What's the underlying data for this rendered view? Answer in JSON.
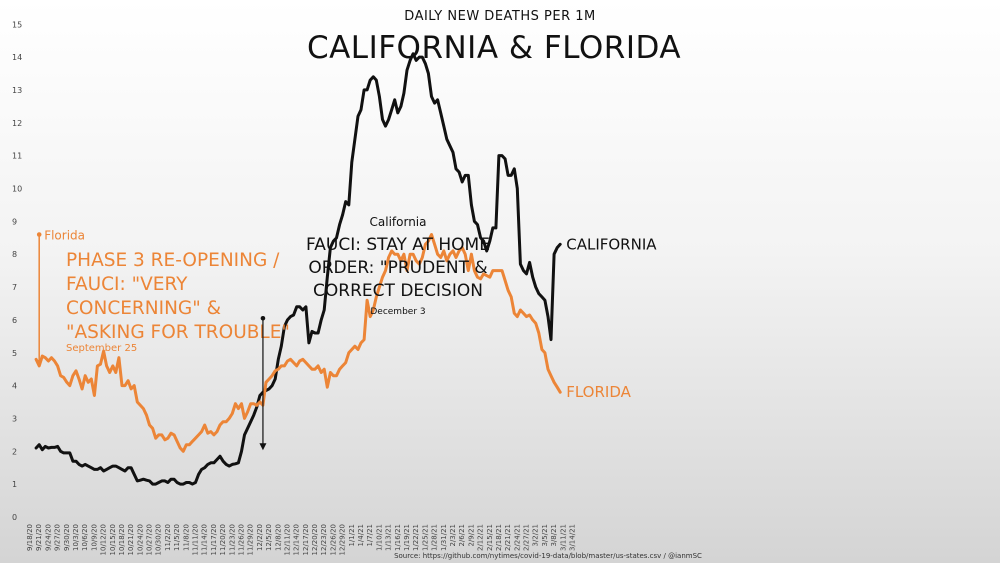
{
  "chart_data": {
    "type": "line",
    "subtitle": "DAILY NEW DEATHS PER 1M",
    "title": "CALIFORNIA & FLORIDA",
    "source": "Source: https://github.com/nytimes/covid-19-data/blob/master/us-states.csv / @ianmSC",
    "ylim": [
      0,
      15
    ],
    "yticks": [
      0,
      1,
      2,
      3,
      4,
      5,
      6,
      7,
      8,
      9,
      10,
      11,
      12,
      13,
      14,
      15
    ],
    "xlabels": [
      "9/18/20",
      "9/21/20",
      "9/24/20",
      "9/27/20",
      "9/30/20",
      "10/3/20",
      "10/6/20",
      "10/9/20",
      "10/12/20",
      "10/15/20",
      "10/18/20",
      "10/21/20",
      "10/24/20",
      "10/27/20",
      "10/30/20",
      "11/2/20",
      "11/5/20",
      "11/8/20",
      "11/11/20",
      "11/14/20",
      "11/17/20",
      "11/20/20",
      "11/23/20",
      "11/26/20",
      "11/29/20",
      "12/2/20",
      "12/5/20",
      "12/8/20",
      "12/11/20",
      "12/14/20",
      "12/17/20",
      "12/20/20",
      "12/23/20",
      "12/26/20",
      "12/29/20",
      "1/1/21",
      "1/4/21",
      "1/7/21",
      "1/10/21",
      "1/13/21",
      "1/16/21",
      "1/19/21",
      "1/22/21",
      "1/25/21",
      "1/28/21",
      "1/31/21",
      "2/3/21",
      "2/6/21",
      "2/9/21",
      "2/12/21",
      "2/15/21",
      "2/18/21",
      "2/21/21",
      "2/24/21",
      "2/27/21",
      "3/2/21",
      "3/5/21",
      "3/8/21",
      "3/11/21",
      "3/14/21"
    ],
    "series": [
      {
        "name": "CALIFORNIA",
        "color": "#111111",
        "start_index": 2,
        "values": [
          2.1,
          2.2,
          2.05,
          2.15,
          2.1,
          2.12,
          2.12,
          2.15,
          2.0,
          1.95,
          1.95,
          1.95,
          1.7,
          1.7,
          1.6,
          1.55,
          1.6,
          1.55,
          1.5,
          1.45,
          1.45,
          1.5,
          1.4,
          1.45,
          1.5,
          1.55,
          1.55,
          1.5,
          1.45,
          1.4,
          1.5,
          1.5,
          1.3,
          1.1,
          1.12,
          1.15,
          1.12,
          1.1,
          1.0,
          1.0,
          1.05,
          1.1,
          1.1,
          1.05,
          1.15,
          1.15,
          1.05,
          1.0,
          1.0,
          1.05,
          1.05,
          1.0,
          1.05,
          1.3,
          1.45,
          1.5,
          1.6,
          1.65,
          1.65,
          1.75,
          1.85,
          1.7,
          1.6,
          1.55,
          1.6,
          1.62,
          1.65,
          2.0,
          2.5,
          2.7,
          2.9,
          3.1,
          3.35,
          3.7,
          3.8,
          3.85,
          3.9,
          4.0,
          4.2,
          4.8,
          5.2,
          5.8,
          6.0,
          6.1,
          6.15,
          6.4,
          6.4,
          6.3,
          6.4,
          5.3,
          5.65,
          5.6,
          5.6,
          6.0,
          6.3,
          7.3,
          8.2,
          8.4,
          8.5,
          8.9,
          9.2,
          9.6,
          9.5,
          10.8,
          11.5,
          12.2,
          12.4,
          13.0,
          13.0,
          13.3,
          13.4,
          13.3,
          12.8,
          12.1,
          11.9,
          12.1,
          12.4,
          12.7,
          12.3,
          12.5,
          12.9,
          13.6,
          13.9,
          14.1,
          13.9,
          14.0,
          14.0,
          13.8,
          13.5,
          12.8,
          12.6,
          12.7,
          12.3,
          11.9,
          11.5,
          11.3,
          11.1,
          10.6,
          10.5,
          10.2,
          10.4,
          10.4,
          9.5,
          9.0,
          8.9,
          8.5,
          8.4,
          8.1,
          8.4,
          8.8,
          8.8,
          11.0,
          11.0,
          10.9,
          10.4,
          10.4,
          10.6,
          10.0,
          7.7,
          7.5,
          7.4,
          7.75,
          7.3,
          7.0,
          6.8,
          6.7,
          6.6,
          6.1,
          5.4,
          8.0,
          8.2,
          8.3
        ]
      },
      {
        "name": "FLORIDA",
        "color": "#ec8537",
        "start_index": 2,
        "values": [
          4.8,
          4.6,
          4.9,
          4.85,
          4.75,
          4.85,
          4.75,
          4.6,
          4.3,
          4.25,
          4.1,
          4.0,
          4.3,
          4.45,
          4.2,
          3.9,
          4.3,
          4.1,
          4.2,
          3.7,
          4.6,
          4.65,
          5.05,
          4.6,
          4.4,
          4.6,
          4.4,
          4.85,
          4.0,
          4.0,
          4.15,
          3.9,
          4.0,
          3.5,
          3.4,
          3.3,
          3.1,
          2.8,
          2.7,
          2.4,
          2.5,
          2.5,
          2.35,
          2.4,
          2.55,
          2.5,
          2.3,
          2.1,
          2.0,
          2.2,
          2.2,
          2.3,
          2.4,
          2.5,
          2.6,
          2.8,
          2.55,
          2.6,
          2.5,
          2.6,
          2.8,
          2.9,
          2.9,
          3.0,
          3.15,
          3.45,
          3.3,
          3.45,
          3.0,
          3.2,
          3.45,
          3.45,
          3.4,
          3.5,
          3.4,
          4.1,
          4.2,
          4.3,
          4.45,
          4.5,
          4.6,
          4.6,
          4.75,
          4.8,
          4.7,
          4.6,
          4.75,
          4.8,
          4.7,
          4.6,
          4.5,
          4.5,
          4.6,
          4.4,
          4.5,
          3.95,
          4.4,
          4.3,
          4.3,
          4.5,
          4.6,
          4.7,
          5.0,
          5.1,
          5.2,
          5.1,
          5.3,
          5.4,
          6.6,
          6.1,
          6.3,
          6.7,
          7.0,
          7.3,
          7.5,
          7.9,
          8.1,
          8.0,
          8.0,
          7.8,
          8.0,
          7.5,
          8.0,
          8.0,
          7.8,
          7.7,
          7.9,
          8.3,
          8.4,
          8.6,
          8.3,
          8.0,
          7.9,
          8.1,
          7.8,
          8.0,
          8.1,
          7.9,
          8.1,
          8.2,
          8.0,
          7.5,
          8.0,
          7.5,
          7.3,
          7.25,
          7.4,
          7.35,
          7.3,
          7.5,
          7.5,
          7.5,
          7.5,
          7.2,
          6.9,
          6.7,
          6.2,
          6.1,
          6.3,
          6.2,
          6.1,
          6.15,
          6.0,
          5.9,
          5.6,
          5.1,
          5.0,
          4.5,
          4.3,
          4.1,
          3.95,
          3.8
        ]
      }
    ],
    "series_labels": {
      "california": "CALIFORNIA",
      "florida": "FLORIDA"
    },
    "annotations": {
      "florida_event": {
        "state": "Florida",
        "lines": [
          "PHASE 3 RE-OPENING /",
          "FAUCI: \"VERY",
          "CONCERNING\" &",
          "\"ASKING FOR TROUBLE\""
        ],
        "date": "September 25",
        "x_index": 3,
        "top_value": 8.6,
        "bottom_value": 4.6
      },
      "california_event": {
        "state": "California",
        "lines": [
          "FAUCI: STAY AT HOME",
          "ORDER: \"PRUDENT &",
          "CORRECT DECISION"
        ],
        "date": "December 3",
        "x_index": 76,
        "top_value": 6.05,
        "bottom_value": 2.0
      }
    },
    "grid": false,
    "legend": "none"
  }
}
